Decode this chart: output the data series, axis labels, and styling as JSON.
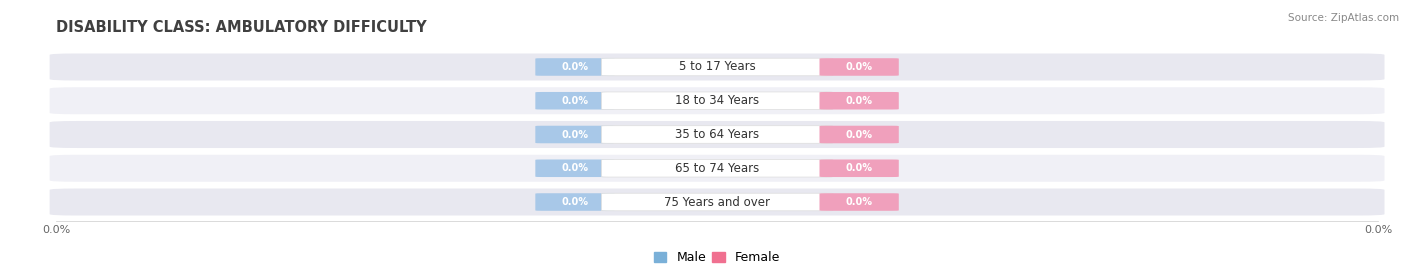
{
  "title": "DISABILITY CLASS: AMBULATORY DIFFICULTY",
  "source": "Source: ZipAtlas.com",
  "categories": [
    "5 to 17 Years",
    "18 to 34 Years",
    "35 to 64 Years",
    "65 to 74 Years",
    "75 Years and over"
  ],
  "male_values": [
    0.0,
    0.0,
    0.0,
    0.0,
    0.0
  ],
  "female_values": [
    0.0,
    0.0,
    0.0,
    0.0,
    0.0
  ],
  "male_color": "#a8c8e8",
  "female_color": "#f0a0bc",
  "row_bg_color": "#e8e8f0",
  "row_bg_light": "#f0f0f6",
  "title_color": "#404040",
  "title_fontsize": 10.5,
  "source_fontsize": 7.5,
  "label_fontsize": 7,
  "category_fontsize": 8.5,
  "axis_label_color": "#666666",
  "xlim": [
    -1.0,
    1.0
  ],
  "background_color": "#ffffff",
  "legend_male_color": "#7ab0d8",
  "legend_female_color": "#f07090",
  "male_label_text_color": "#ffffff",
  "female_label_text_color": "#ffffff",
  "center_box_color": "#ffffff",
  "center_box_edge": "#dddddd"
}
